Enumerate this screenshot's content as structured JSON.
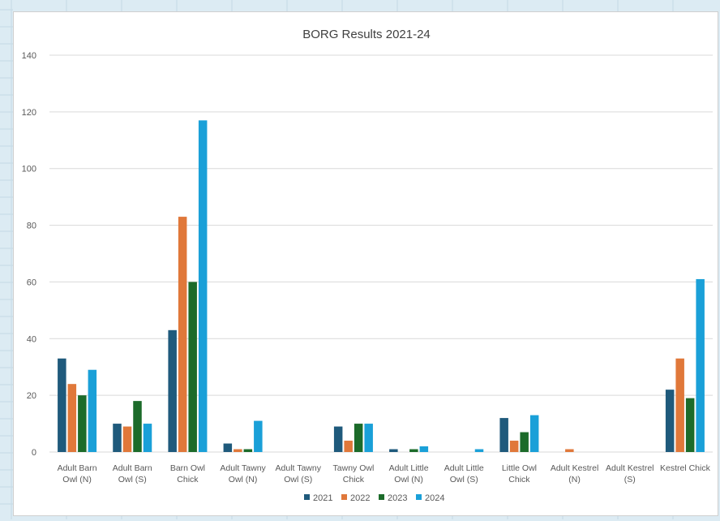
{
  "chart_data": {
    "type": "bar",
    "title": "BORG Results 2021-24",
    "categories": [
      [
        "Adult Barn",
        "Owl (N)"
      ],
      [
        "Adult Barn",
        "Owl (S)"
      ],
      [
        "Barn Owl",
        "Chick"
      ],
      [
        "Adult Tawny",
        "Owl (N)"
      ],
      [
        "Adult Tawny",
        "Owl (S)"
      ],
      [
        "Tawny Owl",
        "Chick"
      ],
      [
        "Adult Little",
        "Owl (N)"
      ],
      [
        "Adult Little",
        "Owl (S)"
      ],
      [
        "Little Owl",
        "Chick"
      ],
      [
        "Adult Kestrel",
        "(N)"
      ],
      [
        "Adult Kestrel",
        "(S)"
      ],
      [
        "Kestrel Chick"
      ]
    ],
    "series": [
      {
        "name": "2021",
        "color": "#1f5a7c",
        "values": [
          33,
          10,
          43,
          3,
          0,
          9,
          1,
          0,
          12,
          0,
          0,
          22
        ]
      },
      {
        "name": "2022",
        "color": "#e0783a",
        "values": [
          24,
          9,
          83,
          1,
          0,
          4,
          0,
          0,
          4,
          1,
          0,
          33
        ]
      },
      {
        "name": "2023",
        "color": "#1c6b2a",
        "values": [
          20,
          18,
          60,
          1,
          0,
          10,
          1,
          0,
          7,
          0,
          0,
          19
        ]
      },
      {
        "name": "2024",
        "color": "#1aa0d8",
        "values": [
          29,
          10,
          117,
          11,
          0,
          10,
          2,
          1,
          13,
          0,
          0,
          61
        ]
      }
    ],
    "ylim": [
      0,
      140
    ],
    "yticks": [
      0,
      20,
      40,
      60,
      80,
      100,
      120,
      140
    ],
    "grid": true,
    "legend": "bottom"
  }
}
